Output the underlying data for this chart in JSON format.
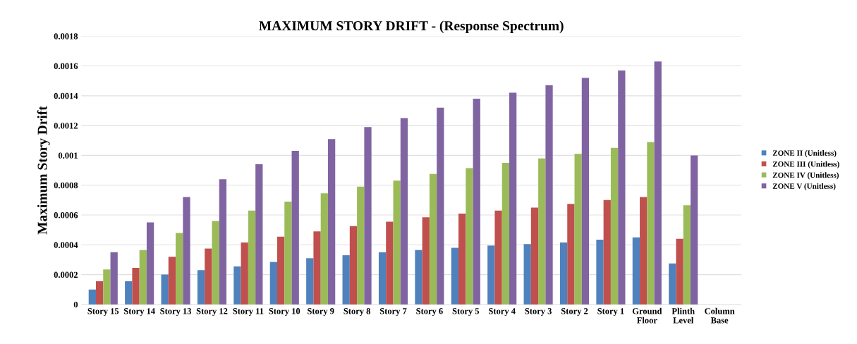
{
  "chart_data": {
    "type": "bar",
    "title": "MAXIMUM STORY DRIFT - (Response Spectrum)",
    "ylabel": "Maximum Story Drift",
    "categories": [
      "Story 15",
      "Story 14",
      "Story 13",
      "Story 12",
      "Story 11",
      "Story 10",
      "Story 9",
      "Story 8",
      "Story 7",
      "Story 6",
      "Story 5",
      "Story 4",
      "Story 3",
      "Story 2",
      "Story 1",
      "Ground\nFloor",
      "Plinth\nLevel",
      "Column\nBase"
    ],
    "series": [
      {
        "name": "ZONE II (Unitless)",
        "color": "#4f81bd",
        "values": [
          0.0001,
          0.000155,
          0.0002,
          0.00023,
          0.000255,
          0.000285,
          0.00031,
          0.00033,
          0.00035,
          0.000365,
          0.00038,
          0.000395,
          0.000405,
          0.000415,
          0.000435,
          0.00045,
          0.000275,
          0
        ]
      },
      {
        "name": "ZONE III (Unitless)",
        "color": "#c0504d",
        "values": [
          0.000155,
          0.000245,
          0.00032,
          0.000375,
          0.000415,
          0.000455,
          0.00049,
          0.000525,
          0.000555,
          0.000585,
          0.00061,
          0.00063,
          0.00065,
          0.000675,
          0.0007,
          0.00072,
          0.00044,
          0
        ]
      },
      {
        "name": "ZONE IV (Unitless)",
        "color": "#9bbb59",
        "values": [
          0.000235,
          0.000365,
          0.00048,
          0.00056,
          0.00063,
          0.00069,
          0.000745,
          0.00079,
          0.00083,
          0.000875,
          0.000915,
          0.00095,
          0.00098,
          0.00101,
          0.00105,
          0.00109,
          0.000665,
          0
        ]
      },
      {
        "name": "ZONE V (Unitless)",
        "color": "#8064a2",
        "values": [
          0.00035,
          0.00055,
          0.00072,
          0.00084,
          0.00094,
          0.00103,
          0.00111,
          0.00119,
          0.00125,
          0.00132,
          0.00138,
          0.00142,
          0.00147,
          0.00152,
          0.00157,
          0.00163,
          0.001,
          0
        ]
      }
    ],
    "ylim": [
      0,
      0.0018
    ],
    "yticks": [
      0,
      0.0002,
      0.0004,
      0.0006,
      0.0008,
      0.001,
      0.0012,
      0.0014,
      0.0016,
      0.0018
    ],
    "grid": "y",
    "legend": "right"
  }
}
